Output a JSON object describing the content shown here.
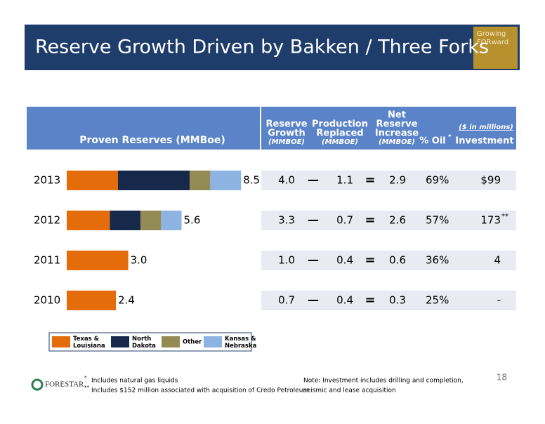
{
  "header": {
    "title": "Reserve Growth Driven by Bakken / Three Forks",
    "badge": [
      "Growing",
      "FORward"
    ]
  },
  "chart_data": {
    "type": "stacked-bar",
    "label": "Proven Reserves (MMBoe)",
    "categories": [
      "2013",
      "2012",
      "2011",
      "2010"
    ],
    "series": [
      {
        "name": "Texas & Louisiana",
        "color": "#e46c0a",
        "values": [
          2.5,
          2.1,
          3.0,
          2.4
        ]
      },
      {
        "name": "North Dakota",
        "color": "#17294a",
        "values": [
          3.5,
          1.5,
          0,
          0
        ]
      },
      {
        "name": "Other",
        "color": "#948a54",
        "values": [
          1.0,
          1.0,
          0,
          0
        ]
      },
      {
        "name": "Kansas & Nebraska",
        "color": "#8db3e2",
        "values": [
          1.5,
          1.0,
          0,
          0
        ]
      }
    ],
    "totals": {
      "values": [
        8.5,
        5.6,
        3.0,
        2.4
      ],
      "value_labels": [
        "8.5",
        "5.6",
        "3.0",
        "2.4"
      ]
    },
    "xlim": [
      0,
      10
    ]
  },
  "table": {
    "columns": [
      {
        "lines": [
          "Reserve",
          "Growth"
        ],
        "unit": "(MMBOE)"
      },
      {
        "lines": [
          "Production",
          "Replaced"
        ],
        "unit": "(MMBOE)"
      },
      {
        "lines": [
          "Net",
          "Reserve",
          "Increase"
        ],
        "unit": "(MMBOE)"
      },
      {
        "lines": [
          "% Oil"
        ],
        "mark": "*"
      },
      {
        "lines": [
          "Investment"
        ],
        "note": "($ in millions)"
      }
    ],
    "operators": [
      "—",
      "="
    ],
    "rows": [
      [
        "4.0",
        "1.1",
        "2.9",
        "69%",
        "$99"
      ],
      [
        "3.3",
        "0.7",
        "2.6",
        "57%",
        "173"
      ],
      [
        "1.0",
        "0.4",
        "0.6",
        "36%",
        "4"
      ],
      [
        "0.7",
        "0.4",
        "0.3",
        "25%",
        "-"
      ]
    ],
    "row_marks": [
      null,
      "**",
      null,
      null
    ]
  },
  "footer": {
    "company": "FORESTAR",
    "footnotes": [
      {
        "mark": "*",
        "text": "Includes natural gas liquids"
      },
      {
        "mark": "**",
        "text": "Includes $152 million associated with acquisition of Credo Petroleum"
      }
    ],
    "note": [
      "Note: Investment includes drilling and completion,",
      "seismic and lease acquisition"
    ],
    "page": "18"
  }
}
